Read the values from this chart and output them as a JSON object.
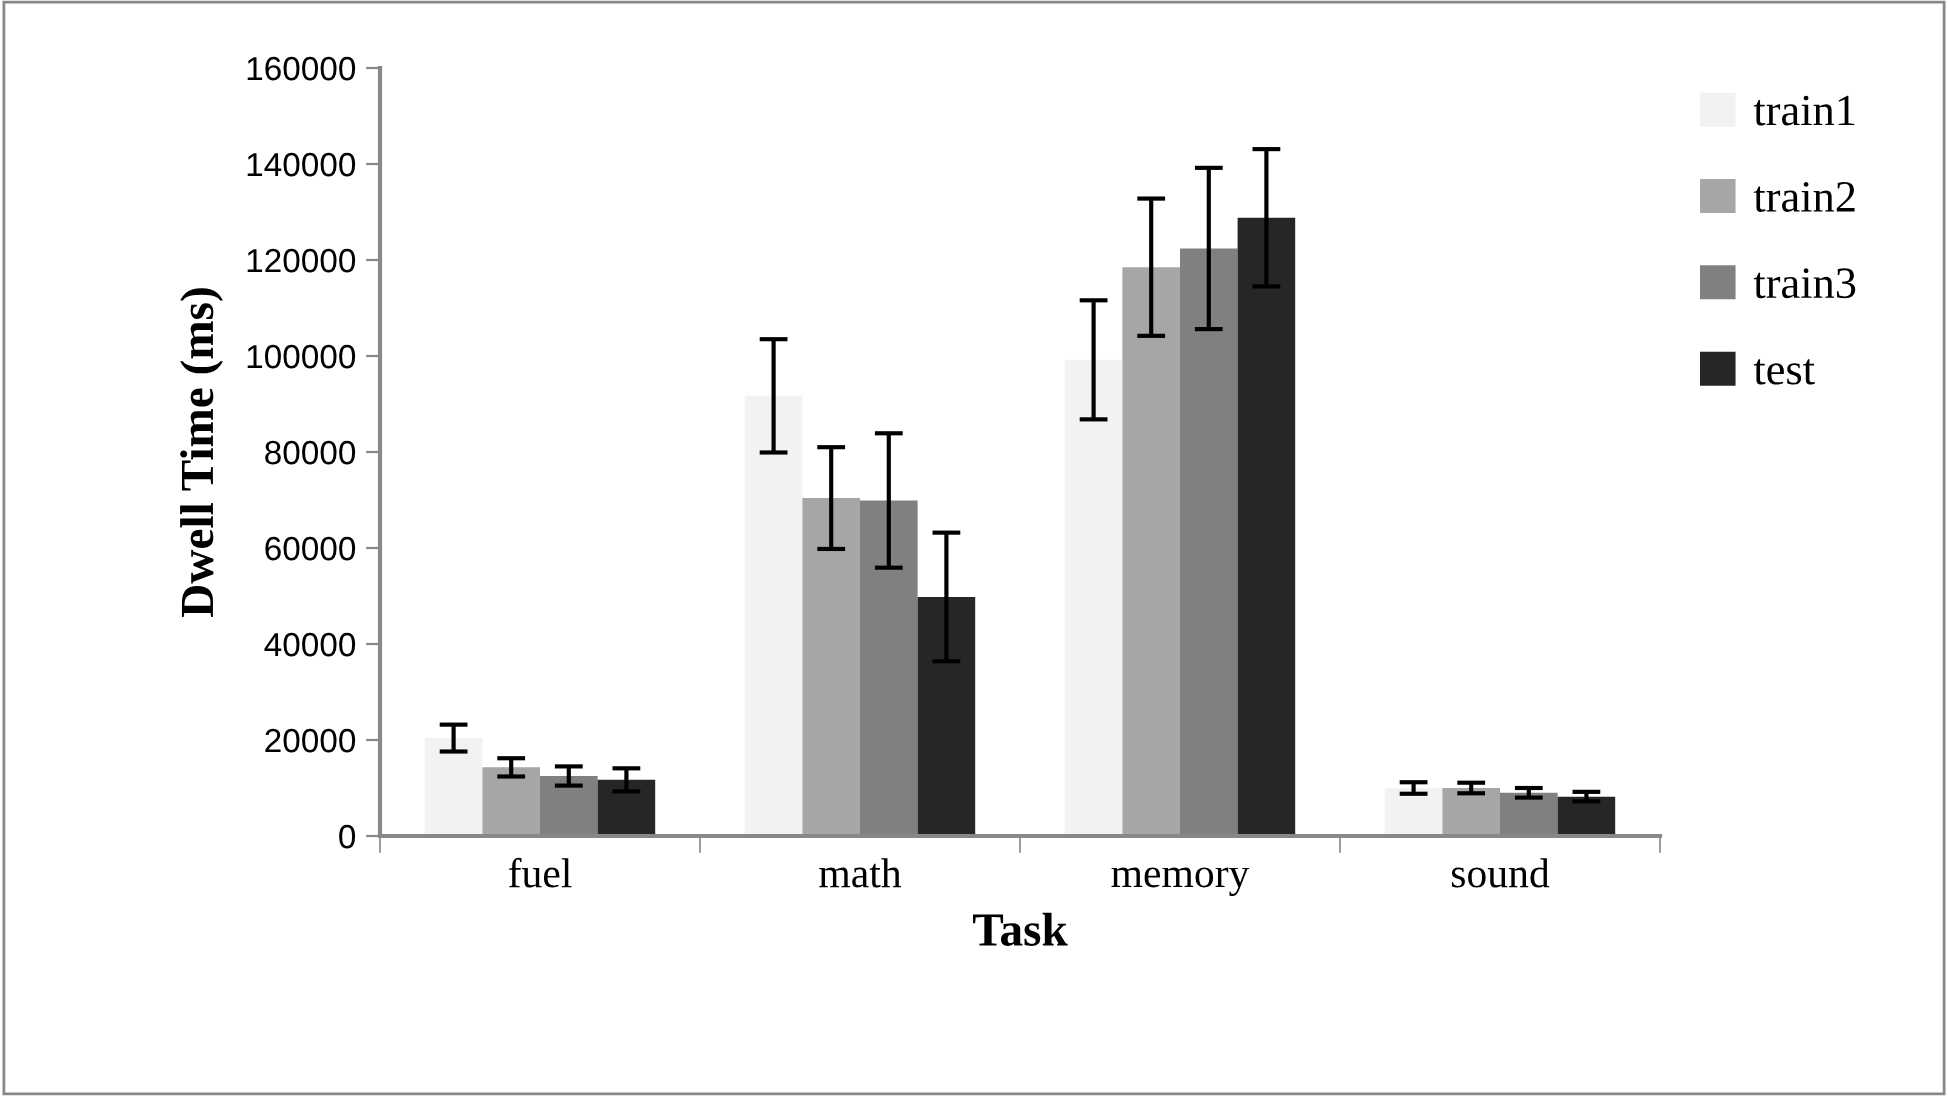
{
  "chart_data": {
    "type": "bar",
    "xlabel": "Task",
    "ylabel": "Dwell Time (ms)",
    "categories": [
      "fuel",
      "math",
      "memory",
      "sound"
    ],
    "series": [
      {
        "name": "train1",
        "color": "#f2f2f2",
        "values": [
          20400,
          91700,
          99200,
          10000
        ],
        "errors": [
          2800,
          11800,
          12400,
          1200
        ]
      },
      {
        "name": "train2",
        "color": "#a6a6a6",
        "values": [
          14300,
          70400,
          118500,
          10000
        ],
        "errors": [
          1900,
          10600,
          14300,
          1100
        ]
      },
      {
        "name": "train3",
        "color": "#808080",
        "values": [
          12500,
          69900,
          122400,
          9000
        ],
        "errors": [
          2000,
          14000,
          16800,
          1000
        ]
      },
      {
        "name": "test",
        "color": "#262626",
        "values": [
          11700,
          49800,
          128800,
          8200
        ],
        "errors": [
          2400,
          13400,
          14300,
          1000
        ]
      }
    ],
    "ylim": [
      0,
      160000
    ],
    "yticks": [
      0,
      20000,
      40000,
      60000,
      80000,
      100000,
      120000,
      140000,
      160000
    ],
    "grid": false,
    "legend": "top right"
  }
}
